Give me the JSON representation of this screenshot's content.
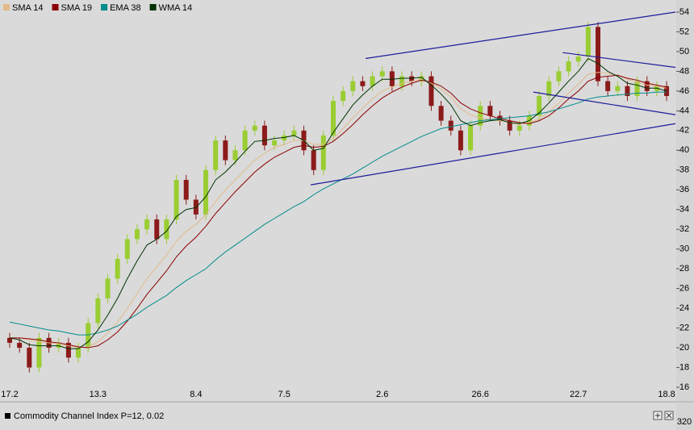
{
  "chart_data": {
    "type": "candlestick",
    "categories": [
      "17.2",
      null,
      null,
      null,
      null,
      null,
      null,
      null,
      null,
      "13.3",
      null,
      null,
      null,
      null,
      null,
      null,
      null,
      null,
      null,
      "8.4",
      null,
      null,
      null,
      null,
      null,
      null,
      null,
      null,
      "7.5",
      null,
      null,
      null,
      null,
      null,
      null,
      null,
      null,
      null,
      "2.6",
      null,
      null,
      null,
      null,
      null,
      null,
      null,
      null,
      null,
      "26.6",
      null,
      null,
      null,
      null,
      null,
      null,
      null,
      null,
      null,
      "22.7",
      null,
      null,
      null,
      null,
      null,
      null,
      null,
      null,
      "18.8"
    ],
    "open": [
      21,
      20.5,
      20,
      18,
      21,
      20,
      20.5,
      19,
      20,
      22.5,
      25,
      27,
      29,
      31,
      32,
      33,
      31,
      33,
      37,
      35,
      33.5,
      38,
      41,
      39,
      40,
      42,
      42.5,
      40.5,
      41,
      41.5,
      42,
      40,
      38,
      41.5,
      45,
      46,
      47,
      46.5,
      47.5,
      48,
      46.5,
      47.5,
      47,
      47.5,
      44.5,
      43,
      42,
      40,
      42.5,
      44.5,
      43.5,
      43,
      42,
      42.5,
      43.5,
      45.5,
      47,
      48,
      49,
      49.5,
      52.5,
      47,
      46,
      46.5,
      45.5,
      47,
      46,
      46.5
    ],
    "high": [
      21.5,
      21,
      20.5,
      21.5,
      21.5,
      21,
      21,
      20.5,
      23,
      25.5,
      27.5,
      29.5,
      31.5,
      32.5,
      33.5,
      33.5,
      33.5,
      37.5,
      37.5,
      35.5,
      38.5,
      41.5,
      41.5,
      40.5,
      42.5,
      43,
      43,
      41.5,
      42,
      42.5,
      42.5,
      40.5,
      42,
      45.5,
      46.5,
      47.5,
      47.5,
      48,
      48.5,
      48.5,
      48,
      48,
      48,
      48,
      45,
      43.5,
      42.5,
      43,
      45,
      45,
      44,
      43.5,
      43,
      44,
      46,
      47.5,
      48.5,
      49.5,
      50,
      53,
      53,
      47.5,
      47,
      47,
      47.5,
      47.5,
      47,
      47
    ],
    "low": [
      20,
      19.5,
      17.5,
      17.5,
      19.5,
      19.5,
      18.5,
      18.5,
      19.5,
      22,
      24.5,
      26.5,
      28.5,
      30.5,
      31.5,
      30.5,
      30.5,
      32.5,
      34.5,
      33,
      33,
      37.5,
      38.5,
      38.5,
      39.5,
      41.5,
      40,
      40,
      40.5,
      41,
      39.5,
      37.5,
      37.5,
      41,
      44.5,
      45.5,
      46,
      46,
      47,
      46,
      46,
      46.5,
      46.5,
      44,
      42.5,
      41.5,
      39.5,
      39.5,
      42,
      43,
      42.5,
      41.5,
      41.5,
      42,
      43,
      45,
      46.5,
      47.5,
      48.5,
      49,
      46.5,
      45.5,
      45.5,
      45,
      45,
      45.5,
      45.5,
      45
    ],
    "close": [
      20.5,
      20,
      18,
      21,
      20,
      20.5,
      19,
      20,
      22.5,
      25,
      27,
      29,
      31,
      32,
      33,
      31,
      33,
      37,
      35,
      33.5,
      38,
      41,
      39,
      40,
      42,
      42.5,
      40.5,
      41,
      41.5,
      42,
      40,
      38,
      41.5,
      45,
      46,
      47,
      46.5,
      47.5,
      48,
      46.5,
      47.5,
      47,
      47.5,
      44.5,
      43,
      42,
      40,
      42.5,
      44.5,
      43.5,
      43,
      42,
      42.5,
      43.5,
      45.5,
      47,
      48,
      49,
      49.5,
      52.5,
      47,
      46,
      46.5,
      45.5,
      47,
      46,
      46.5,
      45.5
    ],
    "up_color": "#9acd32",
    "down_color": "#8b1a1a",
    "series": [
      {
        "name": "SMA 14",
        "color": "#e3b98a",
        "values": [
          21,
          21,
          20.8,
          20.6,
          20.5,
          20.4,
          20.2,
          20,
          20.1,
          20.6,
          21.5,
          22.6,
          24,
          25.5,
          27,
          28.2,
          29.4,
          30.8,
          31.8,
          32.5,
          33.5,
          34.8,
          36,
          37,
          38,
          39,
          39.7,
          40.3,
          40.6,
          41,
          41,
          40.6,
          40.6,
          41.2,
          42.2,
          43.3,
          44.3,
          45.2,
          46,
          46.4,
          46.8,
          47,
          47.2,
          46.8,
          46.2,
          45.4,
          44.2,
          43.6,
          43.3,
          43.1,
          43,
          42.8,
          42.6,
          42.8,
          43.2,
          43.9,
          44.8,
          45.8,
          46.7,
          47.7,
          47.9,
          47.8,
          47.6,
          47.2,
          46.9,
          46.6,
          46.5,
          46.3
        ]
      },
      {
        "name": "SMA 19",
        "color": "#8b0000",
        "values": [
          21,
          21,
          20.9,
          20.8,
          20.6,
          20.5,
          20.3,
          20.1,
          20,
          20.2,
          20.8,
          21.6,
          22.7,
          24,
          25.4,
          26.6,
          27.8,
          29.2,
          30.3,
          31.2,
          32.3,
          33.6,
          34.7,
          35.8,
          36.8,
          37.8,
          38.6,
          39.3,
          39.8,
          40.3,
          40.5,
          40.3,
          40.4,
          40.9,
          41.7,
          42.6,
          43.6,
          44.5,
          45.3,
          45.9,
          46.4,
          46.8,
          47.1,
          46.9,
          46.5,
          45.8,
          44.8,
          44.2,
          43.8,
          43.5,
          43.2,
          43,
          42.8,
          42.7,
          43,
          43.5,
          44.3,
          45.2,
          46,
          47,
          47.4,
          47.5,
          47.6,
          47.3,
          47.1,
          46.8,
          46.6,
          46.4
        ]
      },
      {
        "name": "EMA 38",
        "color": "#008b8b",
        "values": [
          22.6,
          22.4,
          22.2,
          22,
          21.8,
          21.7,
          21.5,
          21.3,
          21.3,
          21.5,
          21.8,
          22.2,
          22.8,
          23.4,
          24.1,
          24.7,
          25.3,
          26.1,
          26.8,
          27.4,
          28,
          28.9,
          29.7,
          30.4,
          31.1,
          31.8,
          32.5,
          33.1,
          33.7,
          34.3,
          34.8,
          35.5,
          36.1,
          36.6,
          37.1,
          37.6,
          38.2,
          38.8,
          39.4,
          39.9,
          40.4,
          40.9,
          41.4,
          41.8,
          42.2,
          42.4,
          42.6,
          42.8,
          43,
          43.1,
          43.2,
          43.3,
          43.4,
          43.5,
          43.7,
          43.9,
          44.2,
          44.5,
          44.8,
          45.2,
          45.4,
          45.5,
          45.6,
          45.7,
          45.8,
          45.8,
          45.9,
          45.9
        ]
      },
      {
        "name": "WMA 14",
        "color": "#003300",
        "values": [
          21,
          20.8,
          20.3,
          20.2,
          20.2,
          20.2,
          19.9,
          19.9,
          20.6,
          21.8,
          23.3,
          25,
          27,
          28.8,
          30.4,
          31,
          31.8,
          33.3,
          34,
          34.2,
          35.3,
          37,
          37.8,
          38.8,
          39.9,
          40.9,
          41,
          41.2,
          41.3,
          41.5,
          41,
          40,
          40.2,
          41.8,
          43.2,
          44.6,
          45.6,
          46.5,
          47.2,
          47.2,
          47.3,
          47.3,
          47.4,
          46.6,
          45.7,
          44.6,
          43,
          42.5,
          42.8,
          43,
          43.1,
          42.8,
          42.7,
          43,
          43.8,
          44.8,
          45.9,
          47,
          48,
          49.3,
          48.8,
          48,
          47.5,
          46.8,
          46.6,
          46.3,
          46.3,
          46
        ]
      }
    ],
    "trendlines": [
      {
        "x": [
          30.7,
          67.9
        ],
        "y": [
          36.5,
          42.7
        ]
      },
      {
        "x": [
          36.3,
          67.9
        ],
        "y": [
          49.3,
          54
        ]
      },
      {
        "x": [
          56.4,
          67.9
        ],
        "y": [
          49.9,
          48.4
        ]
      },
      {
        "x": [
          53.4,
          67.9
        ],
        "y": [
          45.9,
          43.6
        ]
      }
    ],
    "trendline_color": "#1c1c9c",
    "ylim": [
      16,
      54
    ],
    "yticks": [
      16,
      18,
      20,
      22,
      24,
      26,
      28,
      30,
      32,
      34,
      36,
      38,
      40,
      42,
      44,
      46,
      48,
      50,
      52,
      54
    ],
    "indicator": {
      "title": "Commodity Channel Index P=12, 0.02",
      "yticks": [
        320
      ]
    }
  }
}
